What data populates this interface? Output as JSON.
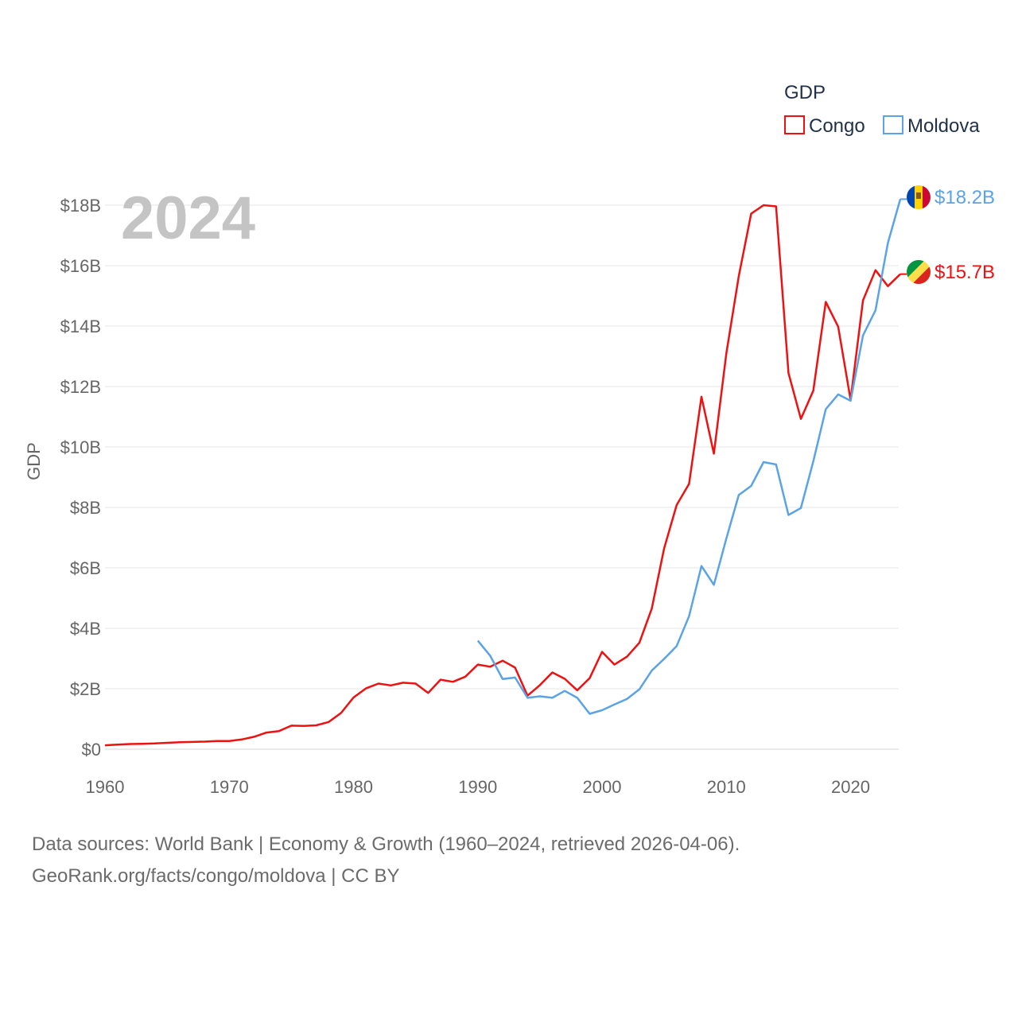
{
  "chart_data": {
    "type": "line",
    "title": "GDP",
    "ylabel": "GDP",
    "xlabel": "",
    "year_label": "2024",
    "xlim": [
      1960,
      2024
    ],
    "ylim": [
      0,
      18000000000
    ],
    "x_ticks": [
      1960,
      1970,
      1980,
      1990,
      2000,
      2010,
      2020
    ],
    "y_ticks": [
      {
        "value": 0,
        "label": "$0"
      },
      {
        "value": 2000000000,
        "label": "$2B"
      },
      {
        "value": 4000000000,
        "label": "$4B"
      },
      {
        "value": 6000000000,
        "label": "$6B"
      },
      {
        "value": 8000000000,
        "label": "$8B"
      },
      {
        "value": 10000000000,
        "label": "$10B"
      },
      {
        "value": 12000000000,
        "label": "$12B"
      },
      {
        "value": 14000000000,
        "label": "$14B"
      },
      {
        "value": 16000000000,
        "label": "$16B"
      },
      {
        "value": 18000000000,
        "label": "$18B"
      }
    ],
    "grid": true,
    "legend": {
      "title": "GDP",
      "position": "top-right"
    },
    "series": [
      {
        "name": "Congo",
        "color": "#ee1111",
        "end_label": "$15.7B",
        "flag": "congo-flag-icon",
        "x": [
          1960,
          1961,
          1962,
          1963,
          1964,
          1965,
          1966,
          1967,
          1968,
          1969,
          1970,
          1971,
          1972,
          1973,
          1974,
          1975,
          1976,
          1977,
          1978,
          1979,
          1980,
          1981,
          1982,
          1983,
          1984,
          1985,
          1986,
          1987,
          1988,
          1989,
          1990,
          1991,
          1992,
          1993,
          1994,
          1995,
          1996,
          1997,
          1998,
          1999,
          2000,
          2001,
          2002,
          2003,
          2004,
          2005,
          2006,
          2007,
          2008,
          2009,
          2010,
          2011,
          2012,
          2013,
          2014,
          2015,
          2016,
          2017,
          2018,
          2019,
          2020,
          2021,
          2022,
          2023,
          2024
        ],
        "values": [
          0.13,
          0.15,
          0.17,
          0.18,
          0.19,
          0.21,
          0.23,
          0.24,
          0.25,
          0.27,
          0.27,
          0.32,
          0.41,
          0.55,
          0.6,
          0.78,
          0.77,
          0.79,
          0.9,
          1.2,
          1.71,
          2.01,
          2.17,
          2.11,
          2.2,
          2.17,
          1.86,
          2.3,
          2.23,
          2.4,
          2.8,
          2.73,
          2.93,
          2.7,
          1.77,
          2.12,
          2.54,
          2.33,
          1.95,
          2.35,
          3.22,
          2.8,
          3.06,
          3.52,
          4.65,
          6.65,
          8.08,
          8.78,
          11.66,
          9.78,
          13.1,
          15.65,
          17.72,
          18.0,
          17.96,
          12.45,
          10.93,
          11.86,
          14.8,
          13.98,
          11.56,
          14.85,
          15.85,
          15.32,
          15.72
        ]
      },
      {
        "name": "Moldova",
        "color": "#5aa3e6",
        "end_label": "$18.2B",
        "flag": "moldova-flag-icon",
        "x": [
          1990,
          1991,
          1992,
          1993,
          1994,
          1995,
          1996,
          1997,
          1998,
          1999,
          2000,
          2001,
          2002,
          2003,
          2004,
          2005,
          2006,
          2007,
          2008,
          2009,
          2010,
          2011,
          2012,
          2013,
          2014,
          2015,
          2016,
          2017,
          2018,
          2019,
          2020,
          2021,
          2022,
          2023,
          2024
        ],
        "values": [
          3.59,
          3.09,
          2.32,
          2.37,
          1.7,
          1.75,
          1.7,
          1.93,
          1.7,
          1.17,
          1.29,
          1.48,
          1.66,
          1.98,
          2.6,
          2.99,
          3.41,
          4.4,
          6.06,
          5.44,
          6.97,
          8.41,
          8.71,
          9.5,
          9.42,
          7.75,
          7.98,
          9.52,
          11.25,
          11.74,
          11.53,
          13.69,
          14.52,
          16.75,
          18.2
        ]
      }
    ]
  },
  "source": {
    "line1": "Data sources: World Bank | Economy & Growth (1960–2024, retrieved 2026-04-06).",
    "line2": "GeoRank.org/facts/congo/moldova | CC BY"
  }
}
